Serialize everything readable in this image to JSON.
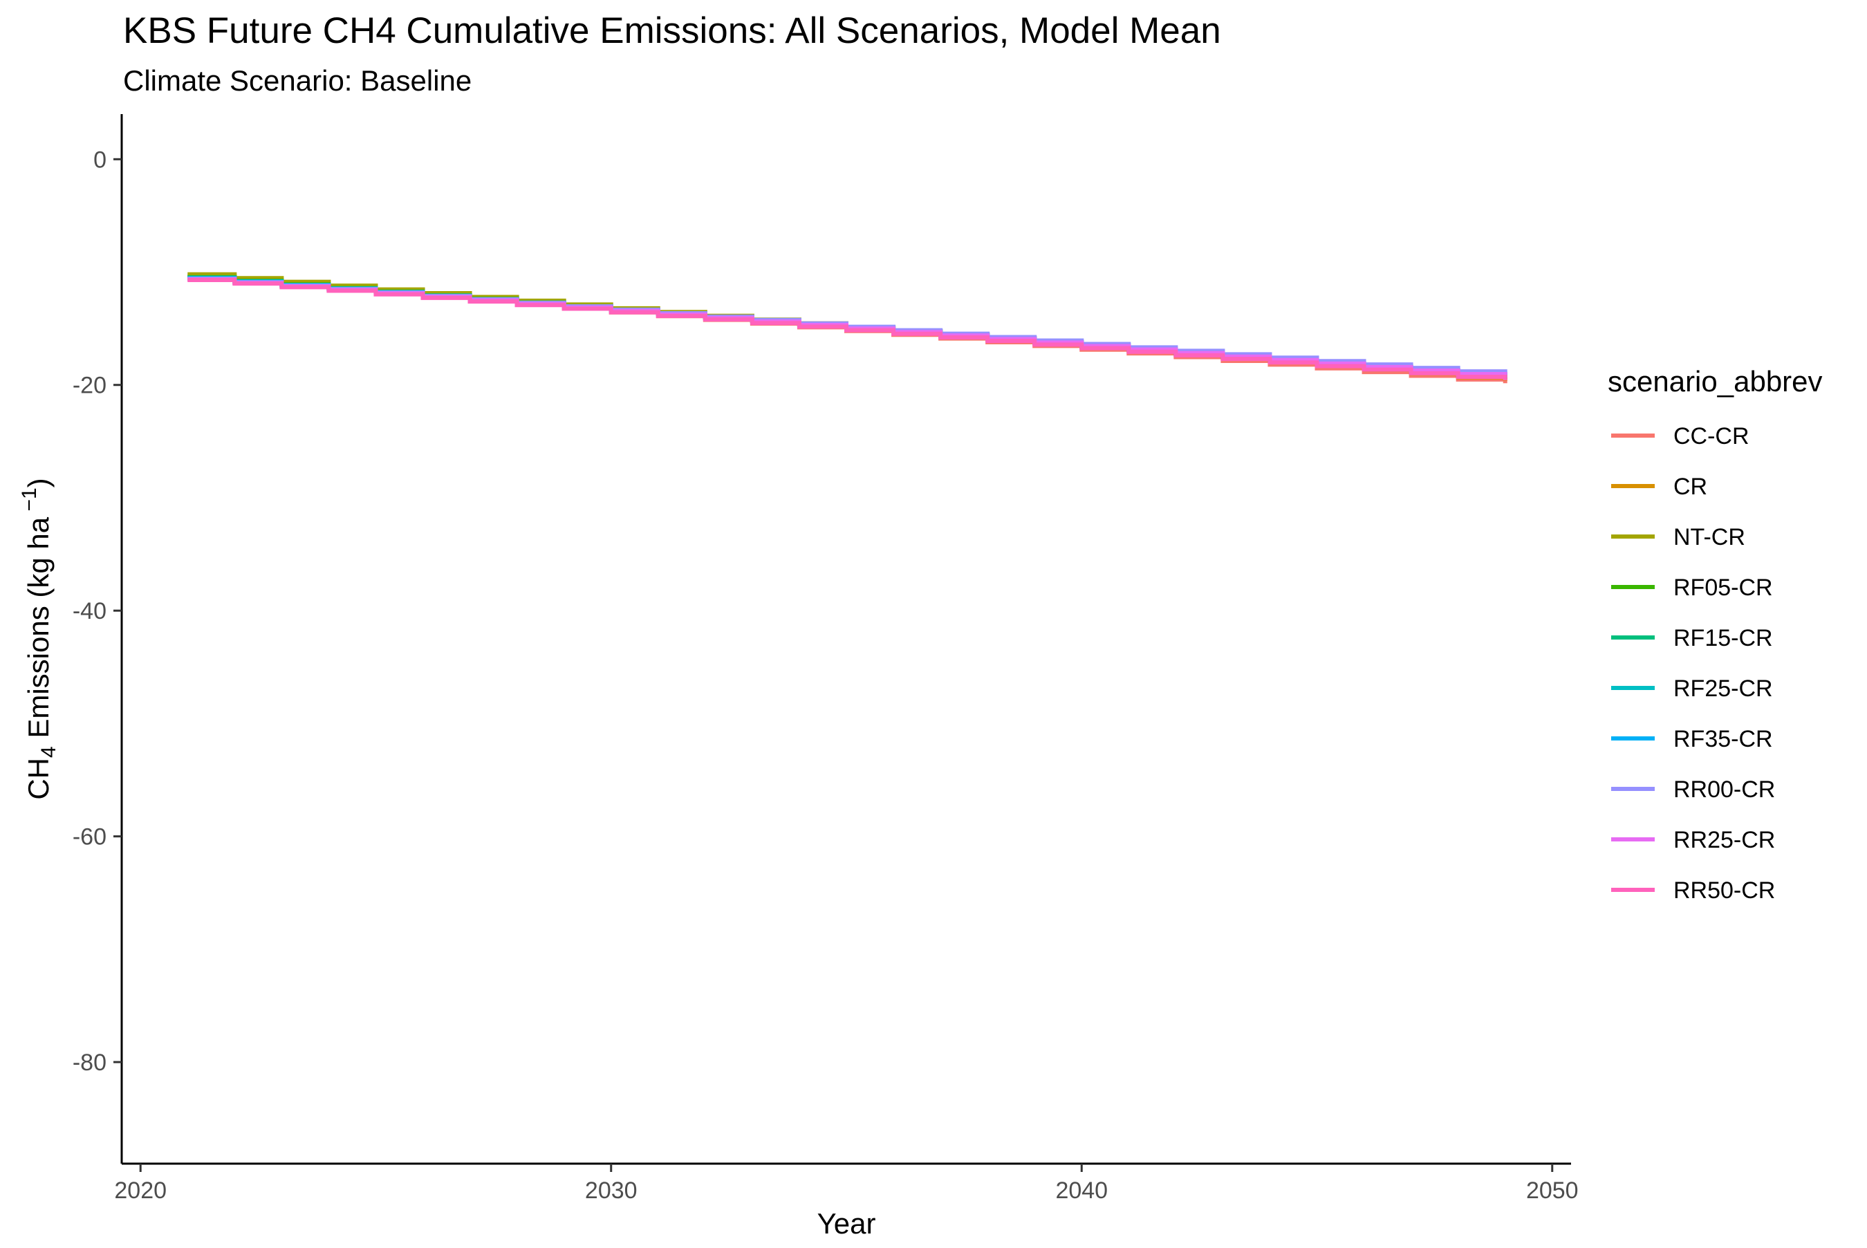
{
  "chart_data": {
    "type": "line",
    "title": "KBS  Future CH4 Cumulative Emissions: All Scenarios, Model Mean",
    "subtitle": "Climate Scenario: Baseline",
    "xlabel": "Year",
    "ylabel": {
      "prefix": "CH",
      "sub": "4",
      "middle": " Emissions (kg ha",
      "sup": " −1",
      "suffix": ")"
    },
    "xlim": [
      2019.6,
      2050.4
    ],
    "ylim": [
      -89,
      4
    ],
    "x_ticks": [
      2020,
      2030,
      2040,
      2050
    ],
    "x_tick_labels": [
      "2020",
      "2030",
      "2040",
      "2050"
    ],
    "y_ticks": [
      0,
      -20,
      -40,
      -60,
      -80
    ],
    "y_tick_labels": [
      "0",
      "-20",
      "-40",
      "-60",
      "-80"
    ],
    "grid": false,
    "step": true,
    "legend": {
      "title": "scenario_abbrev",
      "position": "right"
    },
    "series": [
      {
        "name": "CC-CR",
        "color": "#F8766D",
        "start": [
          2021.0,
          -10.6
        ],
        "end": [
          2049.0,
          -19.85
        ]
      },
      {
        "name": "CR",
        "color": "#D89000",
        "start": [
          2021.0,
          -10.4
        ],
        "end": [
          2049.0,
          -19.65
        ]
      },
      {
        "name": "NT-CR",
        "color": "#A3A500",
        "start": [
          2021.0,
          -10.2
        ],
        "end": [
          2049.0,
          -19.55
        ]
      },
      {
        "name": "RF05-CR",
        "color": "#39B600",
        "start": [
          2021.0,
          -10.45
        ],
        "end": [
          2049.0,
          -19.45
        ]
      },
      {
        "name": "RF15-CR",
        "color": "#00BF7D",
        "start": [
          2021.0,
          -10.5
        ],
        "end": [
          2049.0,
          -19.4
        ]
      },
      {
        "name": "RF25-CR",
        "color": "#00BFC4",
        "start": [
          2021.0,
          -10.5
        ],
        "end": [
          2049.0,
          -19.35
        ]
      },
      {
        "name": "RF35-CR",
        "color": "#00B0F6",
        "start": [
          2021.0,
          -10.55
        ],
        "end": [
          2049.0,
          -19.3
        ]
      },
      {
        "name": "RR00-CR",
        "color": "#9590FF",
        "start": [
          2021.0,
          -10.6
        ],
        "end": [
          2049.0,
          -19.1
        ]
      },
      {
        "name": "RR25-CR",
        "color": "#E76BF3",
        "start": [
          2021.0,
          -10.65
        ],
        "end": [
          2049.0,
          -19.35
        ]
      },
      {
        "name": "RR50-CR",
        "color": "#FF62BC",
        "start": [
          2021.0,
          -10.7
        ],
        "end": [
          2049.0,
          -19.6
        ]
      }
    ]
  }
}
